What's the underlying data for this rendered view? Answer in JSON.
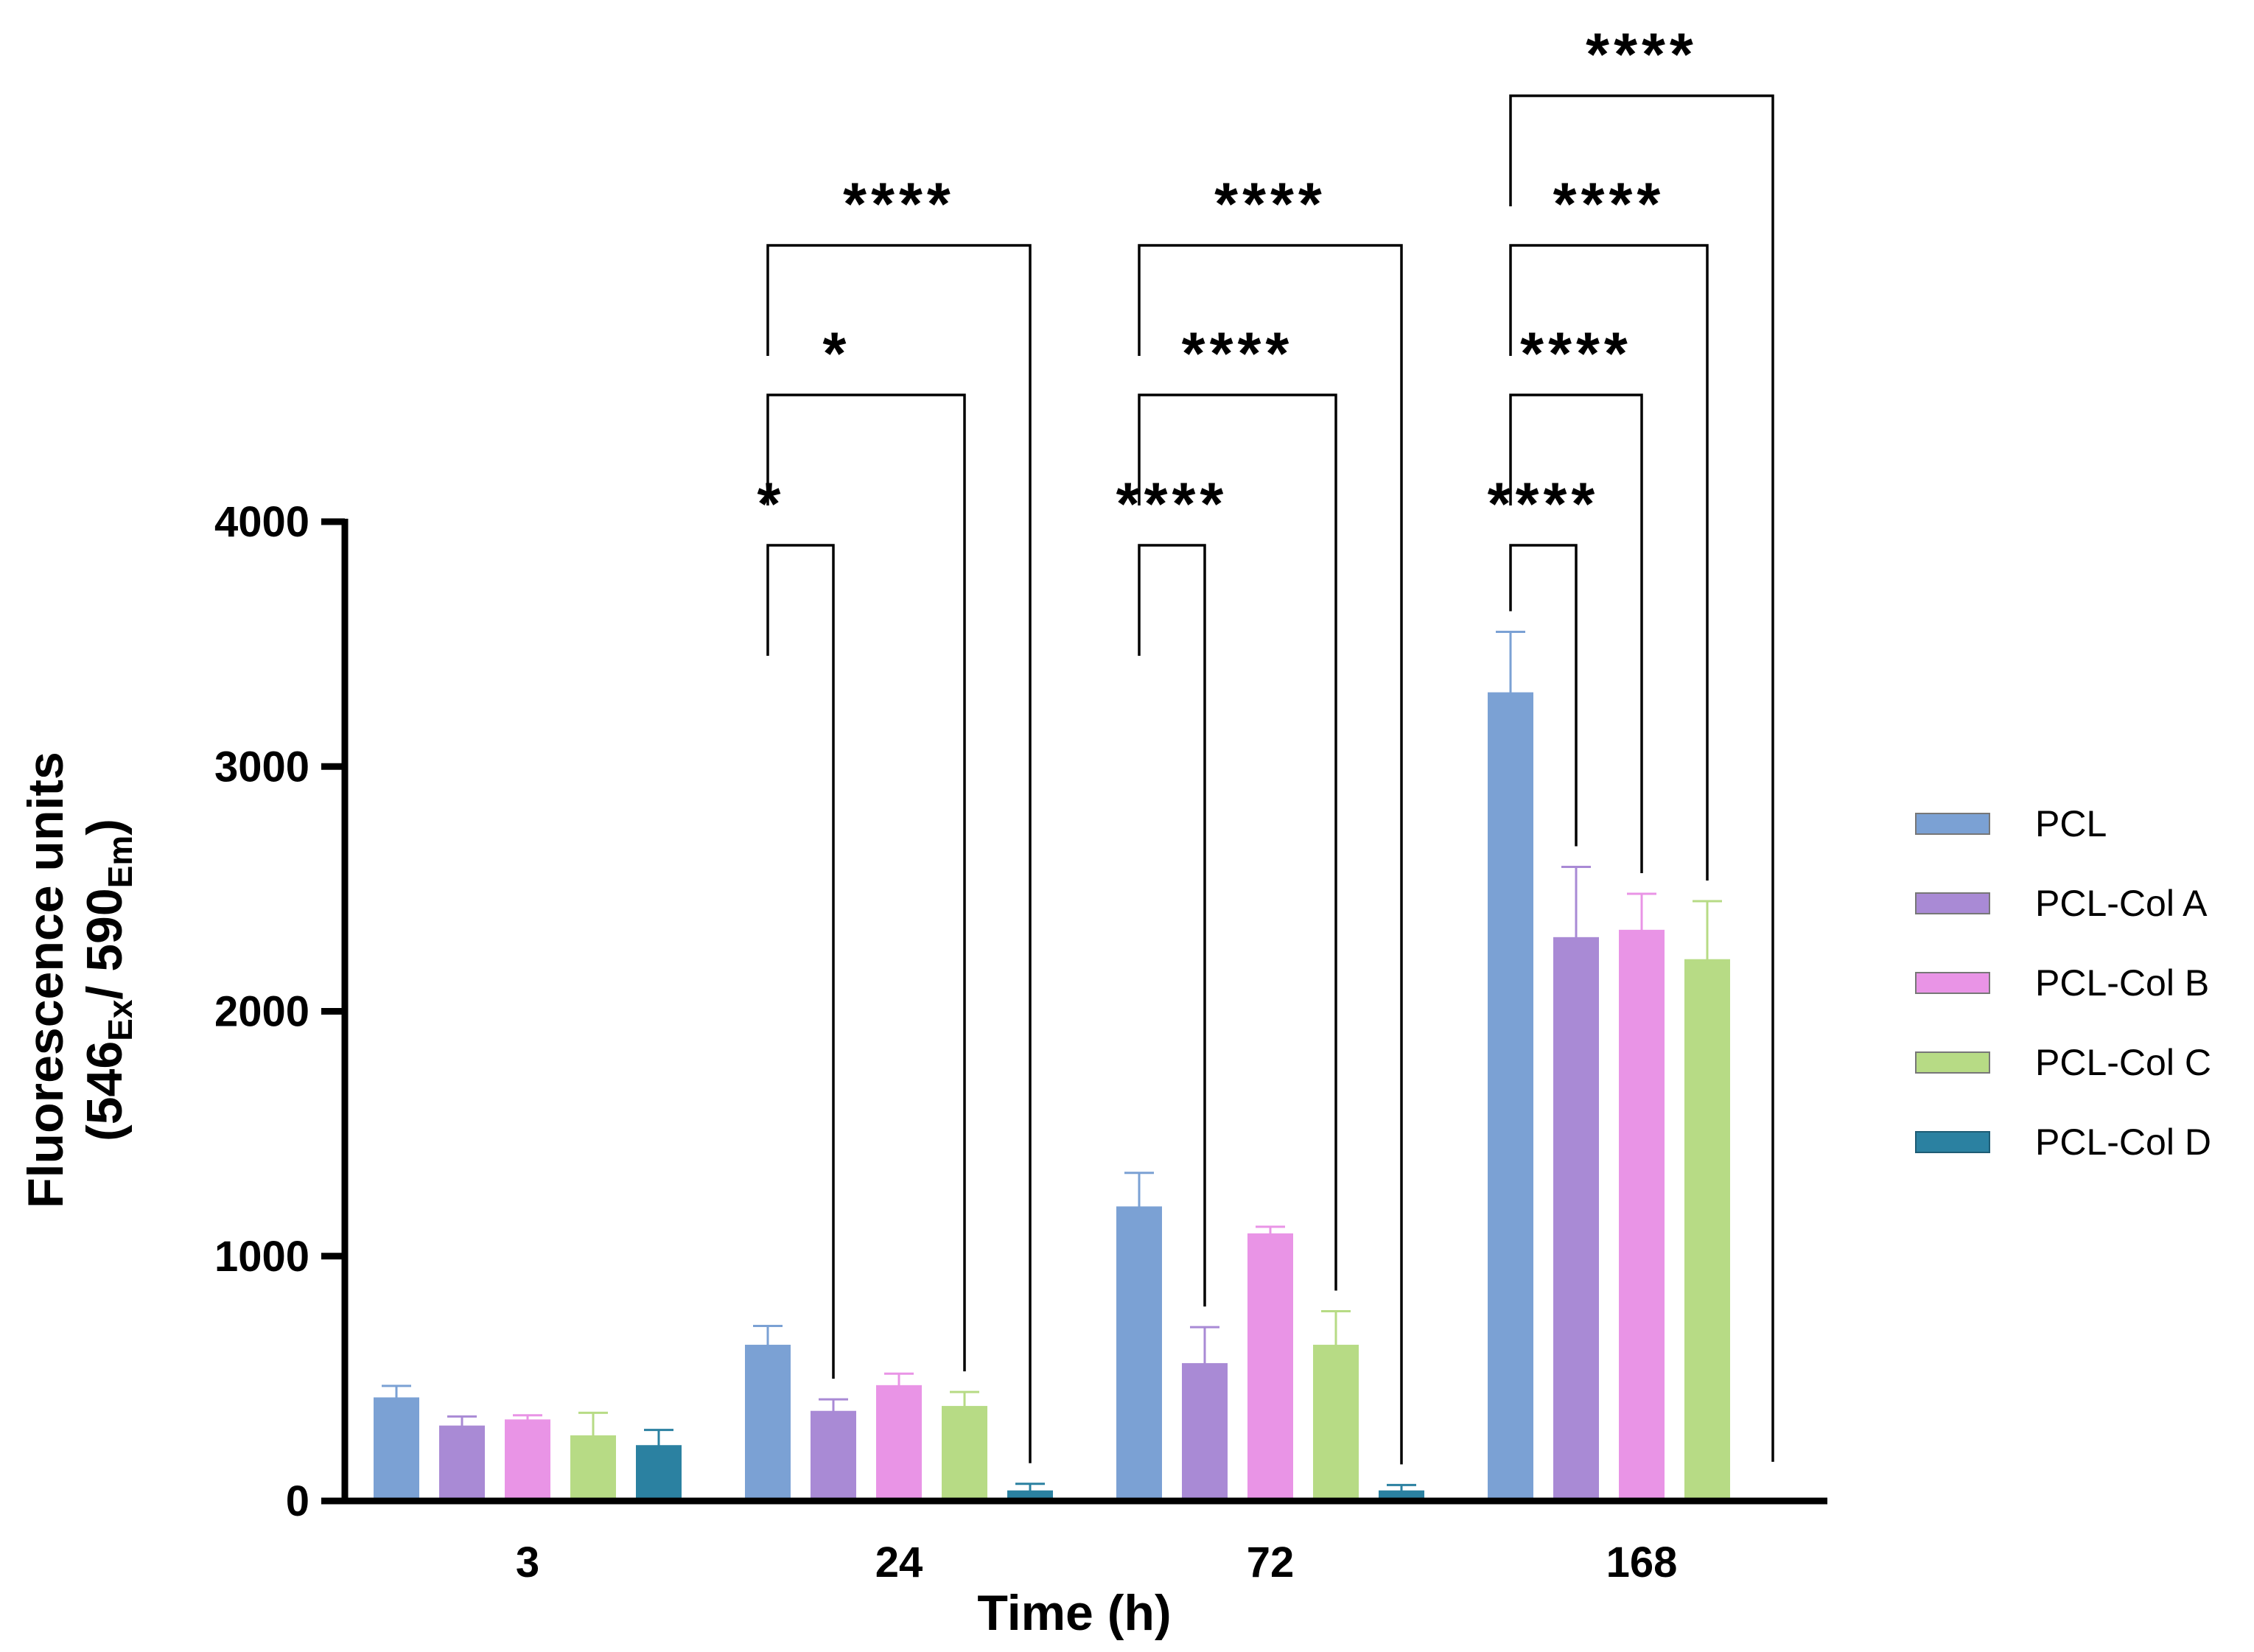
{
  "chart_data": {
    "type": "bar",
    "xlabel": "Time (h)",
    "ylabel": {
      "line1": "Fluorescence units",
      "line2": {
        "open": "(546",
        "sub1": "Ex",
        "mid": "/ 590",
        "sub2": "Em",
        "close": ")"
      }
    },
    "ylim": [
      0,
      4000
    ],
    "yticks": [
      "0",
      "1000",
      "2000",
      "3000",
      "4000"
    ],
    "ytick_values": [
      0,
      1000,
      2000,
      3000,
      4000
    ],
    "categories": [
      "3",
      "24",
      "72",
      "168"
    ],
    "legend_position": "right",
    "series": [
      {
        "name": "PCL",
        "color": "#7ba1d4",
        "values": [
          420,
          635,
          1200,
          3300
        ],
        "errors": [
          50,
          80,
          140,
          250
        ]
      },
      {
        "name": "PCL-Col A",
        "color": "#a98ad5",
        "values": [
          305,
          365,
          560,
          2300
        ],
        "errors": [
          40,
          50,
          150,
          290
        ]
      },
      {
        "name": "PCL-Col B",
        "color": "#e994e6",
        "values": [
          330,
          470,
          1090,
          2330
        ],
        "errors": [
          20,
          50,
          30,
          150
        ]
      },
      {
        "name": "PCL-Col C",
        "color": "#b7db85",
        "values": [
          265,
          385,
          635,
          2210
        ],
        "errors": [
          95,
          60,
          140,
          240
        ]
      },
      {
        "name": "PCL-Col D",
        "color": "#2b81a1",
        "values": [
          225,
          40,
          40,
          null
        ],
        "errors": [
          65,
          30,
          25,
          null
        ]
      }
    ],
    "significance": [
      {
        "category": 1,
        "from_series": 0,
        "to_series": 1,
        "label": "*"
      },
      {
        "category": 1,
        "from_series": 0,
        "to_series": 3,
        "label": "*"
      },
      {
        "category": 1,
        "from_series": 0,
        "to_series": 4,
        "label": "****"
      },
      {
        "category": 2,
        "from_series": 0,
        "to_series": 1,
        "label": "****"
      },
      {
        "category": 2,
        "from_series": 0,
        "to_series": 3,
        "label": "****"
      },
      {
        "category": 2,
        "from_series": 0,
        "to_series": 4,
        "label": "****"
      },
      {
        "category": 3,
        "from_series": 0,
        "to_series": 1,
        "label": "****"
      },
      {
        "category": 3,
        "from_series": 0,
        "to_series": 2,
        "label": "****"
      },
      {
        "category": 3,
        "from_series": 0,
        "to_series": 3,
        "label": "****"
      },
      {
        "category": 3,
        "from_series": 0,
        "to_series": 4,
        "label": "****"
      }
    ]
  }
}
